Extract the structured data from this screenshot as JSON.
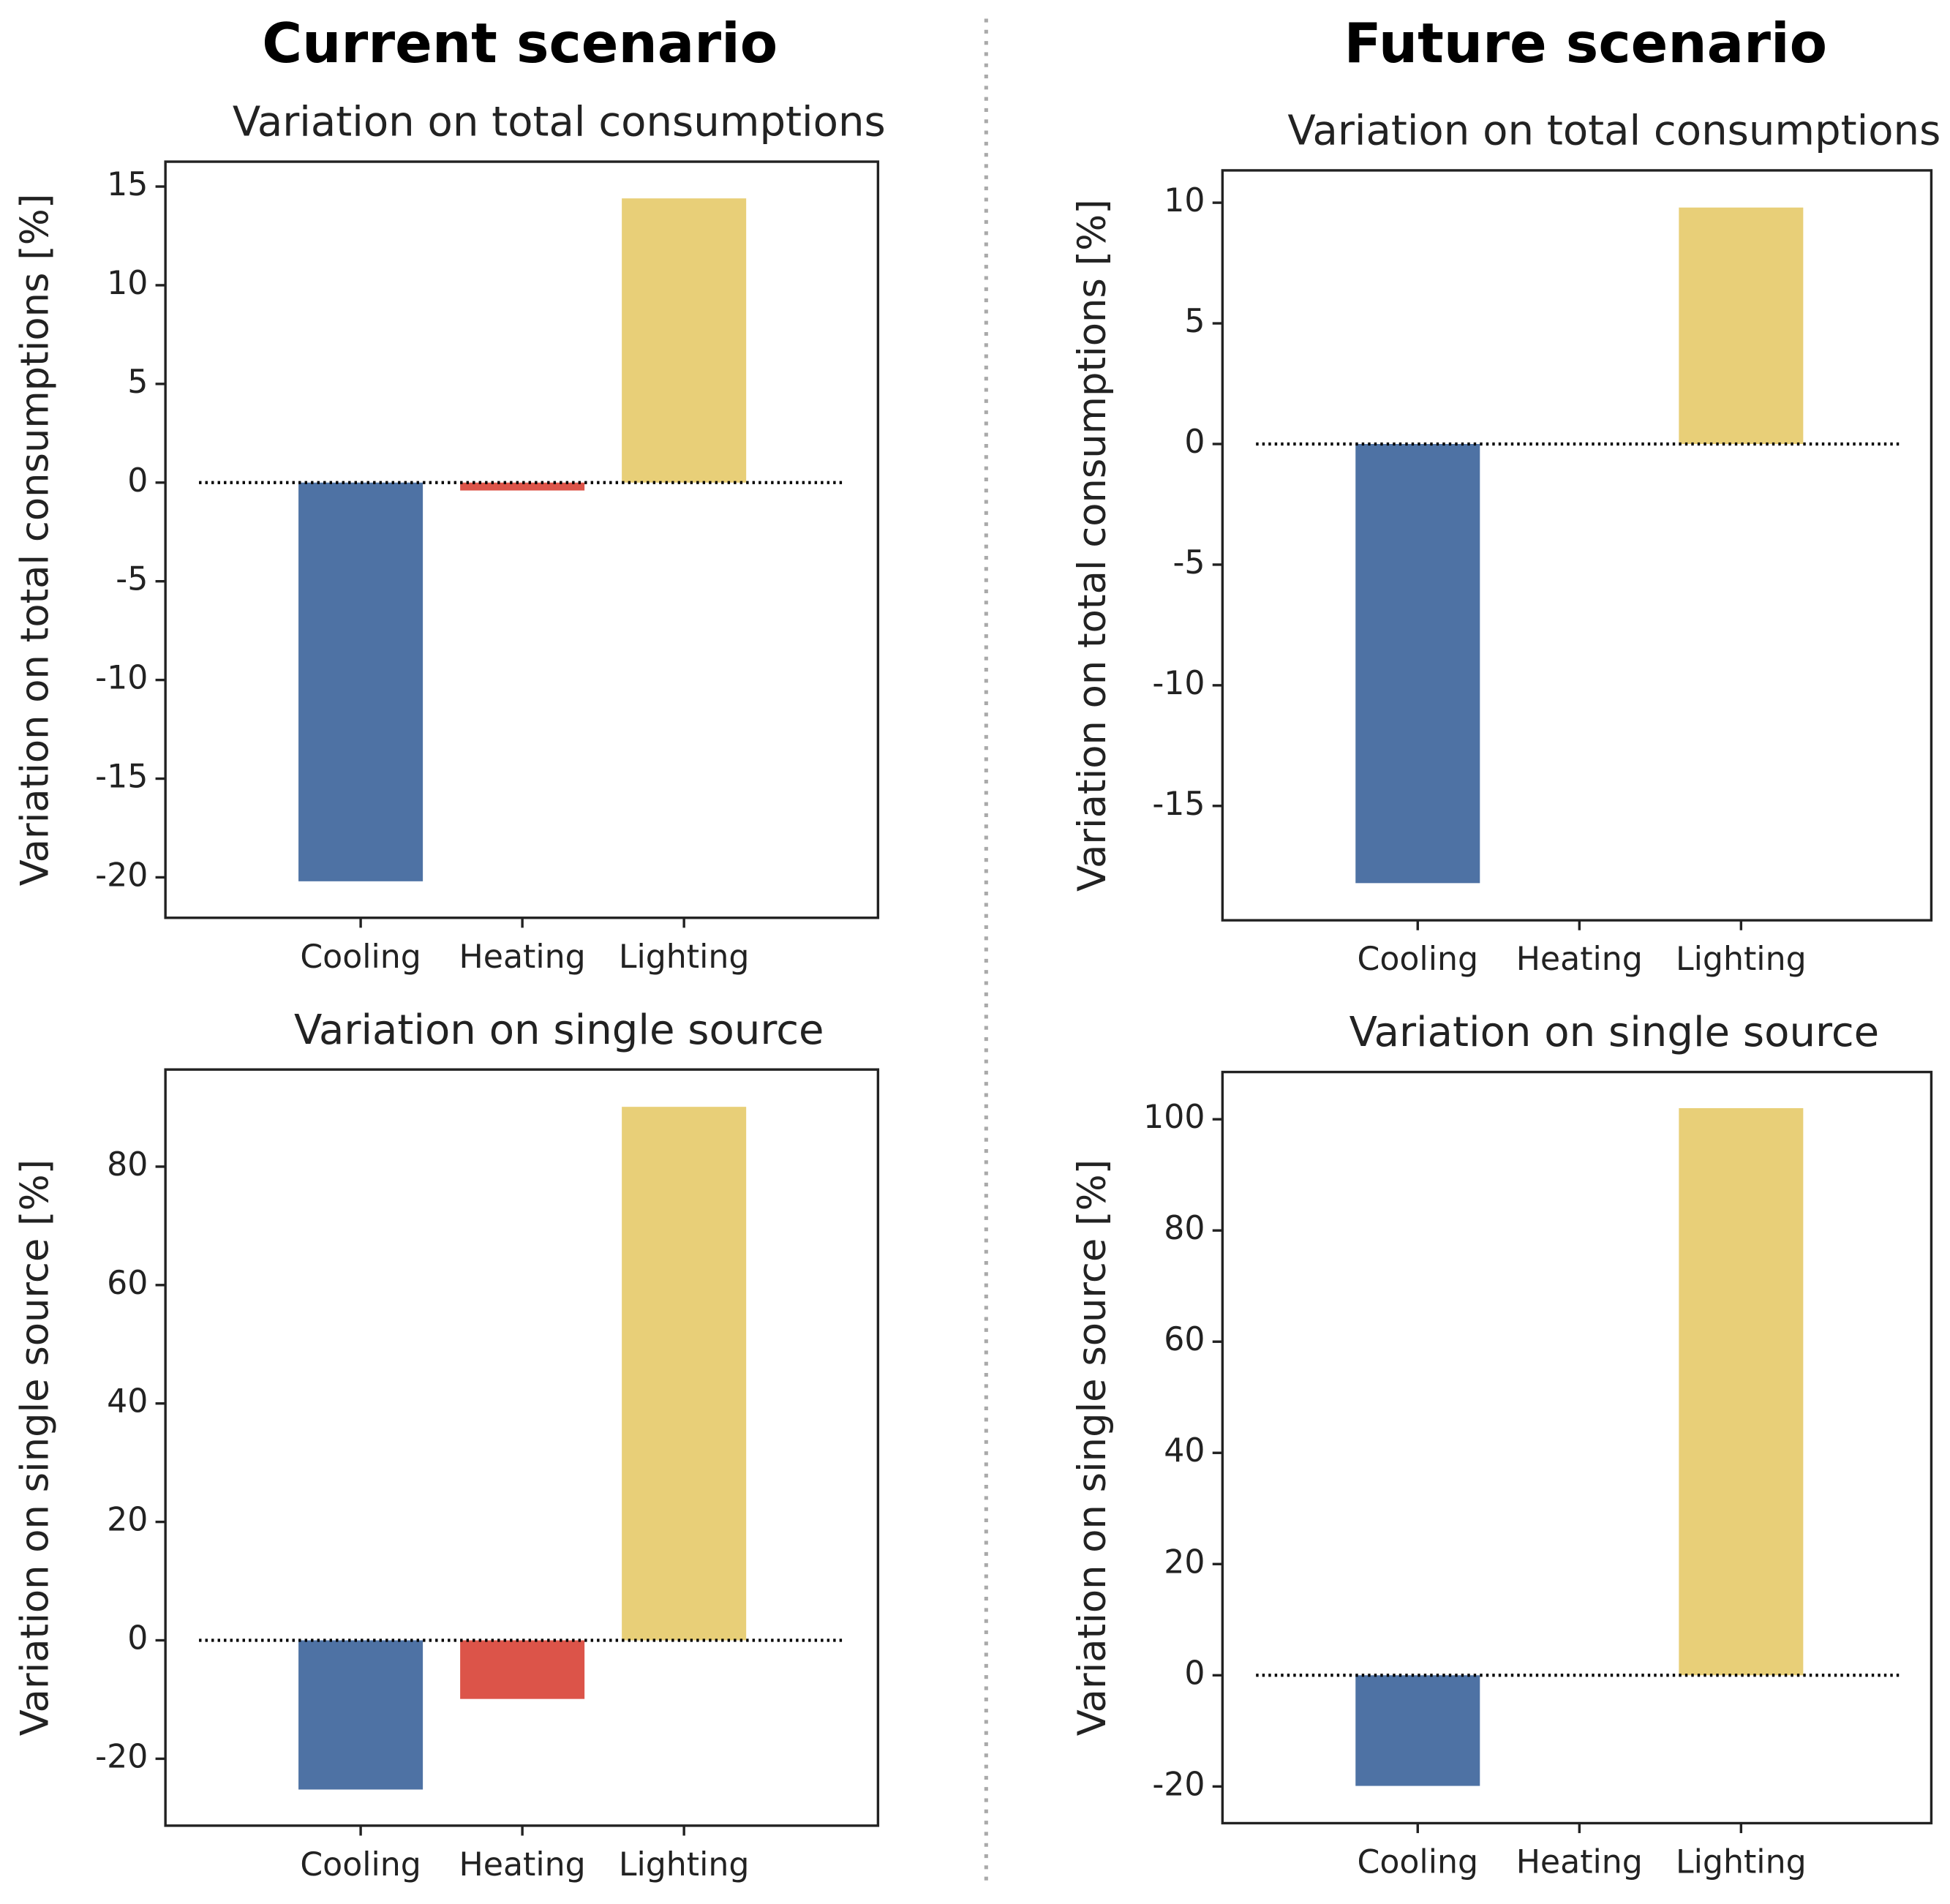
{
  "column_titles": [
    "Current scenario",
    "Future scenario"
  ],
  "chart_data": [
    {
      "type": "bar",
      "title": "Variation on total consumptions",
      "ylabel": "Variation on total consumptions [%]",
      "categories": [
        "Cooling",
        "Heating",
        "Lighting"
      ],
      "values": [
        -20.2,
        -0.4,
        14.4
      ],
      "colors": [
        "#4e72a4",
        "#dc5449",
        "#e8cf78"
      ],
      "ylim": [
        -22.05,
        16.26
      ],
      "yticks": [
        -20,
        -15,
        -10,
        -5,
        0,
        5,
        10,
        15
      ]
    },
    {
      "type": "bar",
      "title": "Variation on total consumptions",
      "ylabel": "Variation on total consumptions [%]",
      "categories": [
        "Cooling",
        "Heating",
        "Lighting"
      ],
      "values": [
        -18.2,
        0,
        9.8
      ],
      "colors": [
        "#4e72a4",
        "#dc5449",
        "#e8cf78"
      ],
      "ylim": [
        -19.74,
        11.34
      ],
      "yticks": [
        -15,
        -10,
        -5,
        0,
        5,
        10
      ]
    },
    {
      "type": "bar",
      "title": "Variation on single source",
      "ylabel": "Variation on single source [%]",
      "categories": [
        "Cooling",
        "Heating",
        "Lighting"
      ],
      "values": [
        -25.2,
        -9.9,
        90.1
      ],
      "colors": [
        "#4e72a4",
        "#dc5449",
        "#e8cf78"
      ],
      "ylim": [
        -31.3,
        96.4
      ],
      "yticks": [
        -20,
        0,
        20,
        40,
        60,
        80
      ]
    },
    {
      "type": "bar",
      "title": "Variation on single source",
      "ylabel": "Variation on single source [%]",
      "categories": [
        "Cooling",
        "Heating",
        "Lighting"
      ],
      "values": [
        -19.9,
        0,
        102.0
      ],
      "colors": [
        "#4e72a4",
        "#dc5449",
        "#e8cf78"
      ],
      "ylim": [
        -26.6,
        108.5
      ],
      "yticks": [
        -20,
        0,
        20,
        40,
        60,
        80,
        100
      ]
    }
  ]
}
